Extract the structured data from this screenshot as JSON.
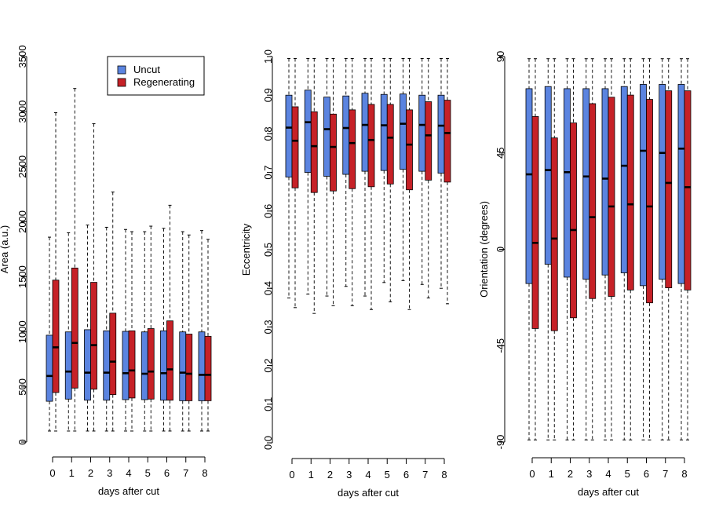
{
  "colors": {
    "uncut": "#5B84E0",
    "regenerating": "#C62127",
    "whisker": "#000000"
  },
  "chart_data": [
    {
      "type": "boxplot",
      "xlabel": "days after cut",
      "ylabel": "Area (a.u.)",
      "categories": [
        "0",
        "1",
        "2",
        "3",
        "4",
        "5",
        "6",
        "7",
        "8"
      ],
      "ylim": [
        0,
        3500
      ],
      "yticks": [
        "0",
        "500",
        "1000",
        "1500",
        "2000",
        "2500",
        "3000",
        "3500"
      ],
      "yticks_values": [
        0,
        500,
        1000,
        1500,
        2000,
        2500,
        3000,
        3500
      ],
      "legend": {
        "position": "top-right",
        "entries": [
          "Uncut",
          "Regenerating"
        ]
      },
      "series": [
        {
          "name": "Uncut",
          "boxes": [
            {
              "min": 100,
              "q1": 370,
              "median": 600,
              "q3": 970,
              "max": 1860
            },
            {
              "min": 100,
              "q1": 390,
              "median": 640,
              "q3": 1000,
              "max": 1900
            },
            {
              "min": 100,
              "q1": 380,
              "median": 630,
              "q3": 1020,
              "max": 1970
            },
            {
              "min": 100,
              "q1": 380,
              "median": 630,
              "q3": 1010,
              "max": 1950
            },
            {
              "min": 100,
              "q1": 385,
              "median": 625,
              "q3": 1005,
              "max": 1930
            },
            {
              "min": 100,
              "q1": 385,
              "median": 620,
              "q3": 1000,
              "max": 1910
            },
            {
              "min": 100,
              "q1": 380,
              "median": 625,
              "q3": 1010,
              "max": 1940
            },
            {
              "min": 100,
              "q1": 375,
              "median": 630,
              "q3": 1000,
              "max": 1910
            },
            {
              "min": 100,
              "q1": 375,
              "median": 610,
              "q3": 1000,
              "max": 1920
            }
          ]
        },
        {
          "name": "Regenerating",
          "boxes": [
            {
              "min": 100,
              "q1": 450,
              "median": 860,
              "q3": 1470,
              "max": 2990
            },
            {
              "min": 100,
              "q1": 490,
              "median": 900,
              "q3": 1580,
              "max": 3210
            },
            {
              "min": 100,
              "q1": 480,
              "median": 880,
              "q3": 1450,
              "max": 2890
            },
            {
              "min": 100,
              "q1": 430,
              "median": 730,
              "q3": 1170,
              "max": 2270
            },
            {
              "min": 100,
              "q1": 400,
              "median": 650,
              "q3": 1010,
              "max": 1910
            },
            {
              "min": 100,
              "q1": 390,
              "median": 640,
              "q3": 1030,
              "max": 1960
            },
            {
              "min": 100,
              "q1": 380,
              "median": 660,
              "q3": 1100,
              "max": 2150
            },
            {
              "min": 100,
              "q1": 375,
              "median": 620,
              "q3": 980,
              "max": 1880
            },
            {
              "min": 100,
              "q1": 375,
              "median": 610,
              "q3": 960,
              "max": 1840
            }
          ]
        }
      ]
    },
    {
      "type": "boxplot",
      "xlabel": "days after cut",
      "ylabel": "Eccentricity",
      "categories": [
        "0",
        "1",
        "2",
        "3",
        "4",
        "5",
        "6",
        "7",
        "8"
      ],
      "ylim": [
        0,
        1
      ],
      "yticks": [
        "0.0",
        "0.1",
        "0.2",
        "0.3",
        "0.4",
        "0.5",
        "0.6",
        "0.7",
        "0.8",
        "0.9",
        "1.0"
      ],
      "yticks_values": [
        0,
        0.1,
        0.2,
        0.3,
        0.4,
        0.5,
        0.6,
        0.7,
        0.8,
        0.9,
        1.0
      ],
      "series": [
        {
          "name": "Uncut",
          "boxes": [
            {
              "min": 0.375,
              "q1": 0.688,
              "median": 0.816,
              "q3": 0.9,
              "max": 0.995
            },
            {
              "min": 0.385,
              "q1": 0.7,
              "median": 0.83,
              "q3": 0.913,
              "max": 0.995
            },
            {
              "min": 0.38,
              "q1": 0.69,
              "median": 0.812,
              "q3": 0.895,
              "max": 0.995
            },
            {
              "min": 0.405,
              "q1": 0.695,
              "median": 0.815,
              "q3": 0.898,
              "max": 0.995
            },
            {
              "min": 0.38,
              "q1": 0.703,
              "median": 0.823,
              "q3": 0.905,
              "max": 0.995
            },
            {
              "min": 0.415,
              "q1": 0.705,
              "median": 0.822,
              "q3": 0.902,
              "max": 0.995
            },
            {
              "min": 0.42,
              "q1": 0.708,
              "median": 0.826,
              "q3": 0.903,
              "max": 0.995
            },
            {
              "min": 0.41,
              "q1": 0.703,
              "median": 0.823,
              "q3": 0.9,
              "max": 0.995
            },
            {
              "min": 0.4,
              "q1": 0.698,
              "median": 0.821,
              "q3": 0.9,
              "max": 0.995
            }
          ]
        },
        {
          "name": "Regenerating",
          "boxes": [
            {
              "min": 0.35,
              "q1": 0.66,
              "median": 0.782,
              "q3": 0.87,
              "max": 0.995
            },
            {
              "min": 0.335,
              "q1": 0.648,
              "median": 0.768,
              "q3": 0.857,
              "max": 0.995
            },
            {
              "min": 0.355,
              "q1": 0.652,
              "median": 0.766,
              "q3": 0.851,
              "max": 0.995
            },
            {
              "min": 0.355,
              "q1": 0.658,
              "median": 0.776,
              "q3": 0.862,
              "max": 0.995
            },
            {
              "min": 0.345,
              "q1": 0.663,
              "median": 0.784,
              "q3": 0.876,
              "max": 0.995
            },
            {
              "min": 0.365,
              "q1": 0.67,
              "median": 0.79,
              "q3": 0.876,
              "max": 0.995
            },
            {
              "min": 0.345,
              "q1": 0.655,
              "median": 0.772,
              "q3": 0.862,
              "max": 0.995
            },
            {
              "min": 0.375,
              "q1": 0.68,
              "median": 0.796,
              "q3": 0.883,
              "max": 0.995
            },
            {
              "min": 0.36,
              "q1": 0.675,
              "median": 0.802,
              "q3": 0.887,
              "max": 0.995
            }
          ]
        }
      ]
    },
    {
      "type": "boxplot",
      "xlabel": "days after cut",
      "ylabel": "Orientation (degrees)",
      "categories": [
        "0",
        "1",
        "2",
        "3",
        "4",
        "5",
        "6",
        "7",
        "8"
      ],
      "ylim": [
        -90,
        90
      ],
      "yticks": [
        "-90",
        "-45",
        "0",
        "45",
        "90"
      ],
      "yticks_values": [
        -90,
        -45,
        0,
        45,
        90
      ],
      "series": [
        {
          "name": "Uncut",
          "boxes": [
            {
              "min": -89,
              "q1": -16,
              "median": 35,
              "q3": 75,
              "max": 89
            },
            {
              "min": -89,
              "q1": -7,
              "median": 37,
              "q3": 76,
              "max": 89
            },
            {
              "min": -89,
              "q1": -13,
              "median": 36,
              "q3": 75,
              "max": 89
            },
            {
              "min": -89,
              "q1": -14,
              "median": 34,
              "q3": 75,
              "max": 89
            },
            {
              "min": -89,
              "q1": -12,
              "median": 33,
              "q3": 75,
              "max": 89
            },
            {
              "min": -89,
              "q1": -11,
              "median": 39,
              "q3": 76,
              "max": 89
            },
            {
              "min": -89,
              "q1": -17,
              "median": 46,
              "q3": 77,
              "max": 89
            },
            {
              "min": -89,
              "q1": -14,
              "median": 45,
              "q3": 77,
              "max": 89
            },
            {
              "min": -89,
              "q1": -16,
              "median": 47,
              "q3": 77,
              "max": 89
            }
          ]
        },
        {
          "name": "Regenerating",
          "boxes": [
            {
              "min": -89,
              "q1": -37,
              "median": 3,
              "q3": 62,
              "max": 89
            },
            {
              "min": -89,
              "q1": -38,
              "median": 5,
              "q3": 52,
              "max": 89
            },
            {
              "min": -89,
              "q1": -32,
              "median": 9,
              "q3": 59,
              "max": 89
            },
            {
              "min": -89,
              "q1": -23,
              "median": 15,
              "q3": 68,
              "max": 89
            },
            {
              "min": -89,
              "q1": -22,
              "median": 20,
              "q3": 71,
              "max": 89
            },
            {
              "min": -89,
              "q1": -19,
              "median": 21,
              "q3": 72,
              "max": 89
            },
            {
              "min": -89,
              "q1": -25,
              "median": 20,
              "q3": 70,
              "max": 89
            },
            {
              "min": -89,
              "q1": -18,
              "median": 31,
              "q3": 74,
              "max": 89
            },
            {
              "min": -89,
              "q1": -19,
              "median": 29,
              "q3": 74,
              "max": 89
            }
          ]
        }
      ]
    }
  ]
}
